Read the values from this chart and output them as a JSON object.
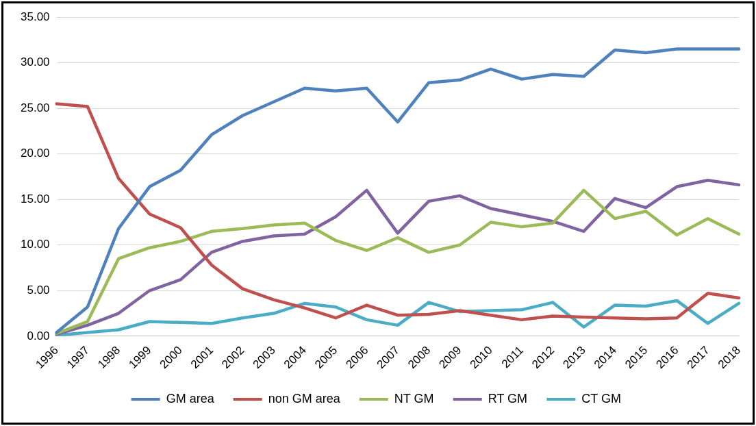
{
  "chart_data": {
    "type": "line",
    "categories": [
      "1996",
      "1997",
      "1998",
      "1999",
      "2000",
      "2001",
      "2002",
      "2003",
      "2004",
      "2005",
      "2006",
      "2007",
      "2008",
      "2009",
      "2010",
      "2011",
      "2012",
      "2013",
      "2014",
      "2015",
      "2016",
      "2017",
      "2018"
    ],
    "series": [
      {
        "name": "GM area",
        "color": "#4f81bd",
        "values": [
          0.4,
          3.2,
          11.8,
          16.4,
          18.2,
          22.1,
          24.2,
          25.7,
          27.2,
          26.9,
          27.2,
          23.5,
          27.8,
          28.1,
          29.3,
          28.2,
          28.7,
          28.5,
          31.4,
          31.1,
          31.5,
          31.5,
          31.5
        ]
      },
      {
        "name": "non GM area",
        "color": "#c0504d",
        "values": [
          25.5,
          25.2,
          17.3,
          13.4,
          11.9,
          7.8,
          5.2,
          4.0,
          3.1,
          2.0,
          3.4,
          2.3,
          2.4,
          2.8,
          2.3,
          1.8,
          2.2,
          2.1,
          2.0,
          1.9,
          2.0,
          4.7,
          4.2
        ]
      },
      {
        "name": "NT GM",
        "color": "#9bbb59",
        "values": [
          0.3,
          1.6,
          8.5,
          9.7,
          10.4,
          11.5,
          11.8,
          12.2,
          12.4,
          10.5,
          9.4,
          10.8,
          9.2,
          10.0,
          12.5,
          12.0,
          12.4,
          16.0,
          12.9,
          13.7,
          11.1,
          12.9,
          11.2
        ]
      },
      {
        "name": "RT GM",
        "color": "#8064a2",
        "values": [
          0.2,
          1.2,
          2.5,
          5.0,
          6.2,
          9.2,
          10.4,
          11.0,
          11.2,
          13.1,
          16.0,
          11.3,
          14.8,
          15.4,
          14.0,
          13.3,
          12.6,
          11.5,
          15.1,
          14.1,
          16.4,
          17.1,
          16.6
        ]
      },
      {
        "name": "CT GM",
        "color": "#4bacc6",
        "values": [
          0.1,
          0.4,
          0.7,
          1.6,
          1.5,
          1.4,
          2.0,
          2.5,
          3.6,
          3.2,
          1.8,
          1.2,
          3.7,
          2.7,
          2.8,
          2.9,
          3.7,
          1.0,
          3.4,
          3.3,
          3.9,
          1.4,
          3.6
        ]
      }
    ],
    "ylim": [
      0,
      35
    ],
    "yticks": [
      {
        "value": 0,
        "label": "0.00"
      },
      {
        "value": 5,
        "label": "5.00"
      },
      {
        "value": 10,
        "label": "10.00"
      },
      {
        "value": 15,
        "label": "15.00"
      },
      {
        "value": 20,
        "label": "20.00"
      },
      {
        "value": 25,
        "label": "25.00"
      },
      {
        "value": 30,
        "label": "30.00"
      },
      {
        "value": 35,
        "label": "35.00"
      }
    ],
    "grid": "y",
    "legend": "bottom",
    "marker": "none",
    "line_style": "solid"
  }
}
